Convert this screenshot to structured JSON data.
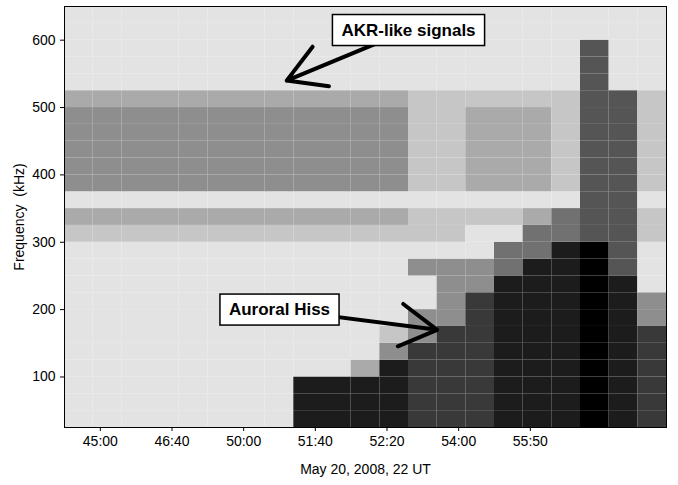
{
  "chart_data": {
    "type": "heatmap",
    "x_label": "May 20, 2008, 22 UT",
    "y_label": "Frequency  (kHz)",
    "xlim": [
      0,
      84
    ],
    "ylim": [
      25,
      650
    ],
    "xticks": [
      {
        "value": 5,
        "label": "45:00"
      },
      {
        "value": 15,
        "label": "46:40"
      },
      {
        "value": 25,
        "label": "50:00"
      },
      {
        "value": 35,
        "label": "51:40"
      },
      {
        "value": 45,
        "label": "52:20"
      },
      {
        "value": 55,
        "label": "54:00"
      },
      {
        "value": 65,
        "label": "55:50"
      }
    ],
    "yticks": [
      100,
      200,
      300,
      400,
      500,
      600
    ],
    "x_edges": [
      0,
      4,
      8,
      12,
      16,
      20,
      24,
      28,
      32,
      36,
      40,
      44,
      48,
      52,
      56,
      60,
      64,
      68,
      72,
      76,
      80,
      84
    ],
    "y_edges": [
      25,
      50,
      75,
      100,
      125,
      150,
      175,
      200,
      225,
      250,
      275,
      300,
      325,
      350,
      375,
      400,
      425,
      450,
      475,
      500,
      525,
      550,
      575,
      600,
      625,
      650
    ],
    "zlim": [
      0,
      9
    ],
    "z": [
      [
        1,
        1,
        1,
        1,
        1,
        1,
        1,
        1,
        8,
        8,
        8,
        8,
        7,
        7,
        7,
        8,
        8,
        8,
        9,
        8,
        7
      ],
      [
        1,
        1,
        1,
        1,
        1,
        1,
        1,
        1,
        8,
        8,
        8,
        8,
        7,
        7,
        7,
        8,
        8,
        8,
        9,
        8,
        7
      ],
      [
        1,
        1,
        1,
        1,
        1,
        1,
        1,
        1,
        8,
        8,
        8,
        8,
        7,
        7,
        7,
        8,
        8,
        8,
        9,
        8,
        7
      ],
      [
        1,
        1,
        1,
        1,
        1,
        1,
        1,
        1,
        1,
        1,
        3,
        8,
        7,
        7,
        7,
        8,
        8,
        8,
        9,
        8,
        7
      ],
      [
        1,
        1,
        1,
        1,
        1,
        1,
        1,
        1,
        1,
        1,
        1,
        4,
        7,
        7,
        7,
        8,
        8,
        8,
        9,
        8,
        7
      ],
      [
        1,
        1,
        1,
        1,
        1,
        1,
        1,
        1,
        1,
        1,
        1,
        2,
        4,
        7,
        7,
        8,
        8,
        8,
        9,
        8,
        7
      ],
      [
        1,
        1,
        1,
        1,
        1,
        1,
        1,
        1,
        1,
        1,
        1,
        1,
        4,
        4,
        7,
        8,
        8,
        8,
        9,
        8,
        4
      ],
      [
        1,
        1,
        1,
        1,
        1,
        1,
        1,
        1,
        1,
        1,
        1,
        1,
        1,
        4,
        7,
        8,
        8,
        8,
        9,
        8,
        4
      ],
      [
        1,
        1,
        1,
        1,
        1,
        1,
        1,
        1,
        1,
        1,
        1,
        1,
        1,
        4,
        4,
        8,
        8,
        8,
        9,
        8,
        1
      ],
      [
        1,
        1,
        1,
        1,
        1,
        1,
        1,
        1,
        1,
        1,
        1,
        1,
        4,
        4,
        4,
        5,
        8,
        8,
        9,
        6,
        1
      ],
      [
        1,
        1,
        1,
        1,
        1,
        1,
        1,
        1,
        1,
        1,
        1,
        1,
        1,
        1,
        1,
        5,
        5,
        8,
        9,
        6,
        1
      ],
      [
        2,
        2,
        2,
        2,
        2,
        2,
        2,
        2,
        2,
        2,
        2,
        2,
        2,
        2,
        1,
        1,
        5,
        5,
        6,
        6,
        2
      ],
      [
        3,
        3,
        3,
        3,
        3,
        3,
        3,
        3,
        3,
        3,
        3,
        3,
        2,
        2,
        2,
        2,
        3,
        5,
        6,
        6,
        2
      ],
      [
        1,
        1,
        1,
        1,
        1,
        1,
        1,
        1,
        1,
        1,
        1,
        1,
        1,
        1,
        1,
        1,
        1,
        1,
        6,
        6,
        1
      ],
      [
        4,
        4,
        4,
        4,
        4,
        4,
        4,
        4,
        4,
        4,
        4,
        4,
        2,
        2,
        3,
        3,
        3,
        2,
        6,
        6,
        2
      ],
      [
        4,
        4,
        4,
        4,
        4,
        4,
        4,
        4,
        4,
        4,
        4,
        4,
        2,
        2,
        3,
        3,
        3,
        2,
        6,
        6,
        2
      ],
      [
        4,
        4,
        4,
        4,
        4,
        4,
        4,
        4,
        4,
        4,
        4,
        4,
        2,
        2,
        3,
        3,
        3,
        2,
        6,
        6,
        2
      ],
      [
        4,
        4,
        4,
        4,
        4,
        4,
        4,
        4,
        4,
        4,
        4,
        4,
        2,
        2,
        3,
        3,
        3,
        2,
        6,
        6,
        2
      ],
      [
        4,
        4,
        4,
        4,
        4,
        4,
        4,
        4,
        4,
        4,
        4,
        4,
        2,
        2,
        3,
        3,
        3,
        2,
        6,
        6,
        2
      ],
      [
        3,
        3,
        3,
        3,
        3,
        3,
        3,
        3,
        3,
        3,
        3,
        3,
        2,
        2,
        2,
        2,
        2,
        2,
        6,
        6,
        2
      ],
      [
        1,
        1,
        1,
        1,
        1,
        1,
        1,
        1,
        1,
        1,
        1,
        1,
        1,
        1,
        1,
        1,
        1,
        1,
        6,
        1,
        1
      ],
      [
        1,
        1,
        1,
        1,
        1,
        1,
        1,
        1,
        1,
        1,
        1,
        1,
        1,
        1,
        1,
        1,
        1,
        1,
        6,
        1,
        1
      ],
      [
        1,
        1,
        1,
        1,
        1,
        1,
        1,
        1,
        1,
        1,
        1,
        1,
        1,
        1,
        1,
        1,
        1,
        1,
        6,
        1,
        1
      ],
      [
        1,
        1,
        1,
        1,
        1,
        1,
        1,
        1,
        1,
        1,
        1,
        1,
        1,
        1,
        1,
        1,
        1,
        1,
        1,
        1,
        1
      ],
      [
        1,
        1,
        1,
        1,
        1,
        1,
        1,
        1,
        1,
        1,
        1,
        1,
        1,
        1,
        1,
        1,
        1,
        1,
        1,
        1,
        1
      ]
    ],
    "annotations": [
      {
        "text": "AKR-like signals",
        "x": 48,
        "y": 615,
        "arrow_x": 31,
        "arrow_y": 540
      },
      {
        "text": "Auroral Hiss",
        "x": 30,
        "y": 200,
        "arrow_x": 52,
        "arrow_y": 170
      }
    ]
  }
}
